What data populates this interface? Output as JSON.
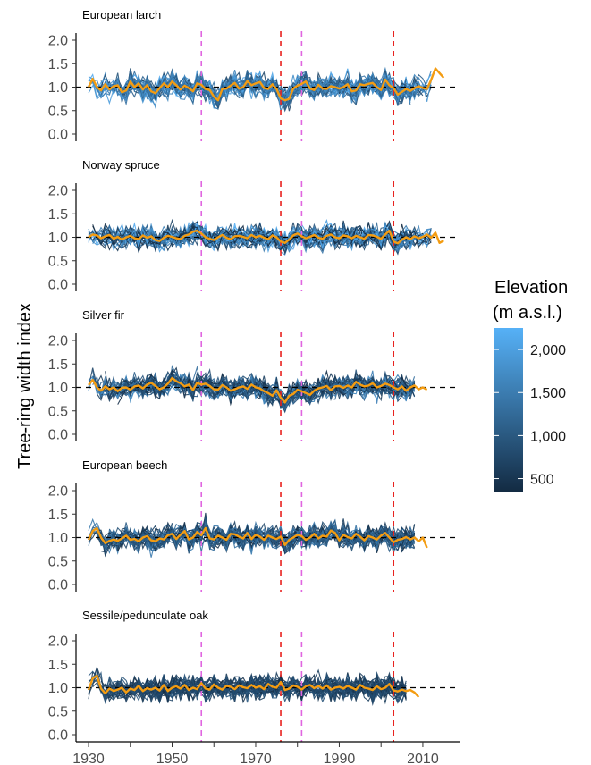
{
  "chart_data": {
    "type": "line",
    "ylabel": "Tree-ring width index",
    "xlim": [
      1927,
      2019
    ],
    "ylim": [
      0.0,
      2.0
    ],
    "x_ticks": [
      1930,
      1950,
      1970,
      1990,
      2010
    ],
    "x_minor_ticks": [
      1940,
      1960,
      1980,
      2000
    ],
    "y_ticks": [
      0.0,
      0.5,
      1.0,
      1.5,
      2.0
    ],
    "y_tick_labels": [
      "0.0",
      "0.5",
      "1.0",
      "1.5",
      "2.0"
    ],
    "reference_line": {
      "y": 1.0,
      "style": "dashed",
      "color": "#000000"
    },
    "event_lines": [
      {
        "x": 1957,
        "color": "#e066e0"
      },
      {
        "x": 1976,
        "color": "#e8221f"
      },
      {
        "x": 1981,
        "color": "#e066e0"
      },
      {
        "x": 2003,
        "color": "#e8221f"
      }
    ],
    "legend": {
      "title_lines": [
        "Elevation",
        "(m a.s.l.)"
      ],
      "ticks": [
        "2,000",
        "1,500",
        "1,000",
        "500"
      ],
      "tick_values": [
        2000,
        1500,
        1000,
        500
      ],
      "range": [
        350,
        2250
      ],
      "color_low": "#132b43",
      "color_high": "#56b1f7",
      "placement": "right"
    },
    "mean_color": "#f39c12",
    "panels": [
      {
        "title": "European larch",
        "elev_range": [
          700,
          2250
        ],
        "mean_series": {
          "x_start": 1930,
          "x_end": 2015,
          "values": [
            1.0,
            1.18,
            1.0,
            0.93,
            1.06,
            0.95,
            1.02,
            1.04,
            0.89,
            0.93,
            1.12,
            1.0,
            1.08,
            0.95,
            1.04,
            0.91,
            0.87,
            0.98,
            1.08,
            1.0,
            1.12,
            1.04,
            0.95,
            1.03,
            0.98,
            0.91,
            1.08,
            1.05,
            0.96,
            0.94,
            0.8,
            0.72,
            0.96,
            0.97,
            1.03,
            1.09,
            0.97,
            1.0,
            1.13,
            1.04,
            1.08,
            1.11,
            0.98,
            0.96,
            1.06,
            0.96,
            0.76,
            0.72,
            0.75,
            0.97,
            1.03,
            1.07,
            1.12,
            0.97,
            0.94,
            1.05,
            0.97,
            0.96,
            1.02,
            1.0,
            0.97,
            1.0,
            1.06,
            0.91,
            0.93,
            1.06,
            1.04,
            1.07,
            1.09,
            1.0,
            0.94,
            1.16,
            1.04,
            0.98,
            0.84,
            0.9,
            0.96,
            0.92,
            0.98,
            1.02,
            0.98,
            0.96,
            1.16,
            1.4,
            1.3,
            1.2
          ]
        }
      },
      {
        "title": "Norway spruce",
        "elev_range": [
          350,
          2200
        ],
        "mean_series": {
          "x_start": 1930,
          "x_end": 2015,
          "values": [
            1.0,
            1.06,
            1.04,
            0.98,
            1.02,
            1.05,
            0.97,
            1.01,
            0.95,
            1.0,
            1.03,
            0.98,
            0.96,
            1.04,
            0.99,
            1.02,
            0.94,
            0.92,
            0.99,
            1.03,
            1.01,
            0.98,
            0.96,
            1.03,
            1.06,
            1.12,
            1.14,
            1.08,
            1.0,
            0.97,
            0.94,
            1.0,
            1.05,
            0.99,
            0.96,
            1.02,
            1.03,
            1.01,
            0.98,
            1.05,
            1.0,
            1.03,
            0.99,
            0.96,
            1.04,
            1.0,
            0.91,
            0.88,
            0.95,
            1.04,
            1.08,
            1.02,
            0.98,
            1.01,
            1.05,
            0.99,
            0.97,
            1.03,
            1.06,
            1.0,
            0.98,
            1.04,
            1.02,
            0.98,
            1.03,
            1.0,
            0.97,
            1.05,
            1.04,
            1.01,
            0.97,
            1.06,
            1.14,
            0.91,
            0.87,
            0.95,
            1.0,
            0.96,
            1.02,
            0.98,
            1.01,
            1.06,
            0.99,
            1.1,
            0.88,
            0.93
          ]
        }
      },
      {
        "title": "Silver fir",
        "elev_range": [
          350,
          1700
        ],
        "mean_series": {
          "x_start": 1930,
          "x_end": 2011,
          "values": [
            1.05,
            1.16,
            1.0,
            0.93,
            1.02,
            0.96,
            1.0,
            0.92,
            0.99,
            1.0,
            0.95,
            1.02,
            1.04,
            0.98,
            1.06,
            1.1,
            1.03,
            0.96,
            1.0,
            1.08,
            1.2,
            1.13,
            1.09,
            1.02,
            1.06,
            0.94,
            1.1,
            1.06,
            1.08,
            1.03,
            0.96,
            0.95,
            1.05,
            1.0,
            0.93,
            0.96,
            1.0,
            1.02,
            0.97,
            1.06,
            1.0,
            0.98,
            0.92,
            0.88,
            0.82,
            0.94,
            0.78,
            0.68,
            0.82,
            0.86,
            0.95,
            0.92,
            0.88,
            0.84,
            0.93,
            0.98,
            1.0,
            1.03,
            0.94,
            1.02,
            1.03,
            0.99,
            1.04,
            1.0,
            1.12,
            1.06,
            1.02,
            1.04,
            1.09,
            1.0,
            1.03,
            1.08,
            1.05,
            1.0,
            0.96,
            1.02,
            0.93,
            1.0,
            1.04,
            0.96,
            1.0,
            0.95
          ]
        }
      },
      {
        "title": "European beech",
        "elev_range": [
          350,
          1500
        ],
        "mean_series": {
          "x_start": 1930,
          "x_end": 2011,
          "values": [
            0.95,
            1.14,
            1.2,
            1.0,
            0.88,
            0.93,
            0.96,
            0.93,
            0.98,
            1.04,
            0.95,
            0.97,
            0.92,
            1.0,
            1.03,
            0.94,
            0.92,
            0.98,
            0.96,
            1.05,
            1.08,
            0.97,
            1.06,
            1.14,
            0.96,
            1.0,
            1.12,
            1.05,
            1.2,
            0.98,
            0.96,
            1.04,
            1.0,
            0.95,
            1.08,
            1.07,
            1.02,
            0.98,
            1.1,
            0.97,
            1.06,
            1.02,
            0.95,
            1.04,
            1.0,
            0.97,
            1.02,
            0.84,
            0.95,
            1.0,
            1.06,
            1.03,
            0.95,
            1.0,
            1.08,
            0.98,
            1.04,
            1.02,
            1.15,
            1.1,
            0.94,
            1.06,
            1.01,
            0.98,
            1.08,
            1.02,
            0.94,
            1.03,
            1.0,
            0.96,
            1.04,
            1.1,
            1.0,
            0.9,
            0.95,
            0.97,
            1.01,
            0.96,
            1.0,
            0.92,
            1.0,
            0.78
          ]
        }
      },
      {
        "title": "Sessile/pedunculate oak",
        "elev_range": [
          350,
          1000
        ],
        "mean_series": {
          "x_start": 1930,
          "x_end": 2009,
          "values": [
            0.95,
            1.2,
            1.26,
            0.98,
            0.88,
            0.98,
            0.93,
            0.96,
            1.0,
            0.9,
            0.98,
            0.95,
            1.04,
            0.93,
            0.99,
            0.96,
            1.0,
            0.94,
            1.06,
            0.93,
            1.0,
            1.03,
            0.98,
            1.06,
            0.95,
            1.0,
            0.97,
            1.1,
            0.98,
            0.96,
            1.07,
            1.0,
            0.96,
            1.04,
            1.02,
            0.97,
            1.05,
            1.01,
            0.99,
            1.06,
            1.0,
            1.03,
            0.97,
            1.08,
            1.02,
            1.0,
            1.12,
            0.95,
            0.98,
            1.05,
            1.02,
            0.96,
            1.03,
            1.06,
            0.99,
            1.04,
            0.98,
            1.05,
            0.96,
            1.0,
            1.02,
            0.98,
            1.04,
            1.0,
            0.96,
            1.06,
            1.0,
            0.98,
            0.95,
            1.03,
            0.97,
            1.0,
            1.08,
            0.94,
            0.92,
            0.96,
            0.93,
            0.95,
            0.9,
            0.8
          ]
        }
      }
    ]
  }
}
